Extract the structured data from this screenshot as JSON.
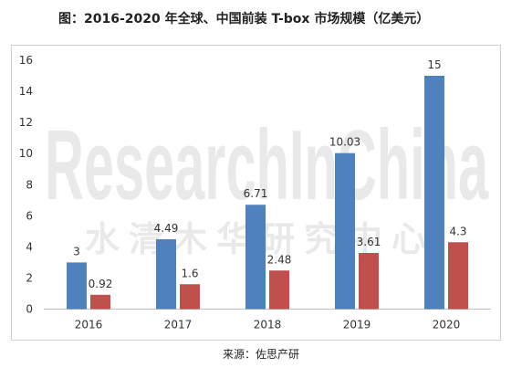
{
  "page": {
    "title": "图：2016-2020 年全球、中国前装 T-box 市场规模（亿美元）",
    "source": "来源：佐思产研",
    "watermark_en": "ResearchInChina",
    "watermark_cn": "水清木华研究中心"
  },
  "chart_data": {
    "type": "bar",
    "title": "图：2016-2020 年全球、中国前装 T-box 市场规模（亿美元）",
    "categories": [
      "2016",
      "2017",
      "2018",
      "2019",
      "2020"
    ],
    "series": [
      {
        "values": [
          3,
          4.49,
          6.71,
          10.03,
          15
        ],
        "labels": [
          "3",
          "4.49",
          "6.71",
          "10.03",
          "15"
        ],
        "color": "#4f81bd"
      },
      {
        "values": [
          0.92,
          1.6,
          2.48,
          3.61,
          4.3
        ],
        "labels": [
          "0.92",
          "1.6",
          "2.48",
          "3.61",
          "4.3"
        ],
        "color": "#c0504d"
      }
    ],
    "yticks": [
      "0",
      "2",
      "4",
      "6",
      "8",
      "10",
      "12",
      "14",
      "16"
    ],
    "ylim": [
      0,
      16
    ],
    "xlabel": "",
    "ylabel": "",
    "grid": false,
    "legend": "none"
  }
}
